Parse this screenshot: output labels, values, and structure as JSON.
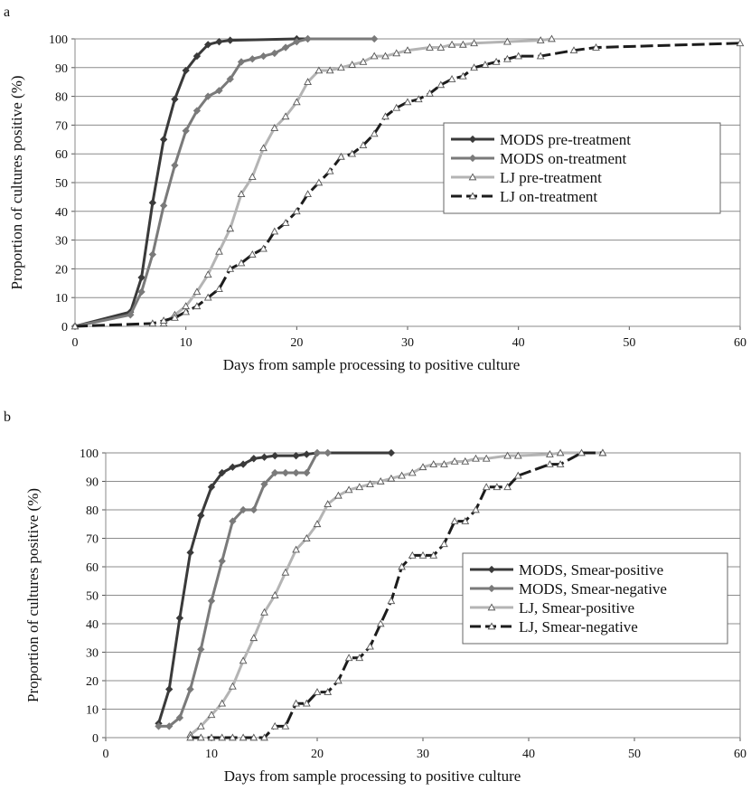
{
  "chart_data": [
    {
      "panel_label": "a",
      "type": "line",
      "xlabel": "Days from sample processing to positive culture",
      "ylabel": "Proportion of cultures positive (%)",
      "xlim": [
        0,
        60
      ],
      "ylim": [
        0,
        100
      ],
      "x_ticks": [
        0,
        10,
        20,
        30,
        40,
        50,
        60
      ],
      "y_ticks": [
        0,
        10,
        20,
        30,
        40,
        50,
        60,
        70,
        80,
        90,
        100
      ],
      "grid": "horizontal",
      "legend_position": "right-middle",
      "series": [
        {
          "name": "MODS pre-treatment",
          "color": "#3a3a3a",
          "marker": "diamond",
          "dash": "solid",
          "points": [
            [
              0,
              0
            ],
            [
              5,
              5
            ],
            [
              6,
              17
            ],
            [
              7,
              43
            ],
            [
              8,
              65
            ],
            [
              9,
              79
            ],
            [
              10,
              89
            ],
            [
              11,
              94
            ],
            [
              12,
              98
            ],
            [
              13,
              99
            ],
            [
              14,
              99.5
            ],
            [
              20,
              100
            ],
            [
              21,
              100
            ]
          ]
        },
        {
          "name": "MODS on-treatment",
          "color": "#7a7a7a",
          "marker": "diamond",
          "dash": "solid",
          "points": [
            [
              0,
              0
            ],
            [
              5,
              4
            ],
            [
              6,
              12
            ],
            [
              7,
              25
            ],
            [
              8,
              42
            ],
            [
              9,
              56
            ],
            [
              10,
              68
            ],
            [
              11,
              75
            ],
            [
              12,
              80
            ],
            [
              13,
              82
            ],
            [
              14,
              86
            ],
            [
              15,
              92
            ],
            [
              16,
              93
            ],
            [
              17,
              94
            ],
            [
              18,
              95
            ],
            [
              19,
              97
            ],
            [
              20,
              99
            ],
            [
              21,
              100
            ],
            [
              27,
              100
            ]
          ]
        },
        {
          "name": "LJ pre-treatment",
          "color": "#b4b4b4",
          "marker": "triangle",
          "dash": "solid",
          "points": [
            [
              8,
              1
            ],
            [
              9,
              4
            ],
            [
              10,
              7
            ],
            [
              11,
              12
            ],
            [
              12,
              18
            ],
            [
              13,
              26
            ],
            [
              14,
              34
            ],
            [
              15,
              46
            ],
            [
              16,
              52
            ],
            [
              17,
              62
            ],
            [
              18,
              69
            ],
            [
              19,
              73
            ],
            [
              20,
              78
            ],
            [
              21,
              85
            ],
            [
              22,
              89
            ],
            [
              23,
              89
            ],
            [
              24,
              90
            ],
            [
              25,
              91
            ],
            [
              26,
              92
            ],
            [
              27,
              94
            ],
            [
              28,
              94
            ],
            [
              29,
              95
            ],
            [
              30,
              96
            ],
            [
              32,
              97
            ],
            [
              33,
              97
            ],
            [
              34,
              98
            ],
            [
              35,
              98
            ],
            [
              36,
              98.5
            ],
            [
              39,
              99
            ],
            [
              42,
              99.5
            ],
            [
              43,
              100
            ]
          ]
        },
        {
          "name": "LJ on-treatment",
          "color": "#1c1c1c",
          "marker": "triangle",
          "dash": "dash",
          "points": [
            [
              0,
              0
            ],
            [
              7,
              1
            ],
            [
              8,
              2
            ],
            [
              9,
              3
            ],
            [
              10,
              5
            ],
            [
              11,
              7
            ],
            [
              12,
              10
            ],
            [
              13,
              13
            ],
            [
              14,
              20
            ],
            [
              15,
              22
            ],
            [
              16,
              25
            ],
            [
              17,
              27
            ],
            [
              18,
              33
            ],
            [
              19,
              36
            ],
            [
              20,
              40
            ],
            [
              21,
              46
            ],
            [
              22,
              50
            ],
            [
              23,
              54
            ],
            [
              24,
              59
            ],
            [
              25,
              60
            ],
            [
              26,
              63
            ],
            [
              27,
              67
            ],
            [
              28,
              73
            ],
            [
              29,
              76
            ],
            [
              30,
              78
            ],
            [
              31,
              79
            ],
            [
              32,
              81
            ],
            [
              33,
              84
            ],
            [
              34,
              86
            ],
            [
              35,
              87
            ],
            [
              36,
              90
            ],
            [
              37,
              91
            ],
            [
              38,
              92
            ],
            [
              39,
              93
            ],
            [
              40,
              94
            ],
            [
              42,
              94
            ],
            [
              45,
              96
            ],
            [
              47,
              97
            ],
            [
              60,
              98.5
            ]
          ]
        }
      ]
    },
    {
      "panel_label": "b",
      "type": "line",
      "xlabel": "Days from sample processing to positive culture",
      "ylabel": "Proportion of cultures positive (%)",
      "xlim": [
        0,
        60
      ],
      "ylim": [
        0,
        100
      ],
      "x_ticks": [
        0,
        10,
        20,
        30,
        40,
        50,
        60
      ],
      "y_ticks": [
        0,
        10,
        20,
        30,
        40,
        50,
        60,
        70,
        80,
        90,
        100
      ],
      "grid": "horizontal",
      "legend_position": "right-middle",
      "series": [
        {
          "name": "MODS, Smear-positive",
          "color": "#3a3a3a",
          "marker": "diamond",
          "dash": "solid",
          "points": [
            [
              5,
              5
            ],
            [
              6,
              17
            ],
            [
              7,
              42
            ],
            [
              8,
              65
            ],
            [
              9,
              78
            ],
            [
              10,
              88
            ],
            [
              11,
              93
            ],
            [
              12,
              95
            ],
            [
              13,
              96
            ],
            [
              14,
              98
            ],
            [
              15,
              98.5
            ],
            [
              16,
              99
            ],
            [
              18,
              99
            ],
            [
              19,
              99.5
            ],
            [
              20,
              100
            ],
            [
              21,
              100
            ],
            [
              27,
              100
            ]
          ]
        },
        {
          "name": "MODS, Smear-negative",
          "color": "#7a7a7a",
          "marker": "diamond",
          "dash": "solid",
          "points": [
            [
              5,
              4
            ],
            [
              6,
              4
            ],
            [
              7,
              7
            ],
            [
              8,
              17
            ],
            [
              9,
              31
            ],
            [
              10,
              48
            ],
            [
              11,
              62
            ],
            [
              12,
              76
            ],
            [
              13,
              80
            ],
            [
              14,
              80
            ],
            [
              15,
              89
            ],
            [
              16,
              93
            ],
            [
              17,
              93
            ],
            [
              18,
              93
            ],
            [
              19,
              93
            ],
            [
              20,
              100
            ],
            [
              21,
              100
            ]
          ]
        },
        {
          "name": "LJ, Smear-positive",
          "color": "#b4b4b4",
          "marker": "triangle",
          "dash": "solid",
          "points": [
            [
              8,
              1
            ],
            [
              9,
              4
            ],
            [
              10,
              8
            ],
            [
              11,
              12
            ],
            [
              12,
              18
            ],
            [
              13,
              27
            ],
            [
              14,
              35
            ],
            [
              15,
              44
            ],
            [
              16,
              50
            ],
            [
              17,
              58
            ],
            [
              18,
              66
            ],
            [
              19,
              70
            ],
            [
              20,
              75
            ],
            [
              21,
              82
            ],
            [
              22,
              85
            ],
            [
              23,
              87
            ],
            [
              24,
              88
            ],
            [
              25,
              89
            ],
            [
              26,
              90
            ],
            [
              27,
              91
            ],
            [
              28,
              92
            ],
            [
              29,
              93
            ],
            [
              30,
              95
            ],
            [
              31,
              96
            ],
            [
              32,
              96
            ],
            [
              33,
              97
            ],
            [
              34,
              97
            ],
            [
              35,
              98
            ],
            [
              36,
              98
            ],
            [
              38,
              99
            ],
            [
              39,
              99
            ],
            [
              42,
              99.5
            ],
            [
              43,
              100
            ],
            [
              47,
              100
            ]
          ]
        },
        {
          "name": "LJ, Smear-negative",
          "color": "#1c1c1c",
          "marker": "triangle",
          "dash": "dash",
          "points": [
            [
              8,
              0
            ],
            [
              9,
              0
            ],
            [
              10,
              0
            ],
            [
              11,
              0
            ],
            [
              12,
              0
            ],
            [
              13,
              0
            ],
            [
              14,
              0
            ],
            [
              15,
              0
            ],
            [
              16,
              4
            ],
            [
              17,
              4
            ],
            [
              18,
              12
            ],
            [
              19,
              12
            ],
            [
              20,
              16
            ],
            [
              21,
              16
            ],
            [
              22,
              20
            ],
            [
              23,
              28
            ],
            [
              24,
              28
            ],
            [
              25,
              32
            ],
            [
              26,
              40
            ],
            [
              27,
              48
            ],
            [
              28,
              60
            ],
            [
              29,
              64
            ],
            [
              30,
              64
            ],
            [
              31,
              64
            ],
            [
              32,
              68
            ],
            [
              33,
              76
            ],
            [
              34,
              76
            ],
            [
              35,
              80
            ],
            [
              36,
              88
            ],
            [
              37,
              88
            ],
            [
              38,
              88
            ],
            [
              39,
              92
            ],
            [
              42,
              96
            ],
            [
              43,
              96
            ],
            [
              45,
              100
            ],
            [
              47,
              100
            ]
          ]
        }
      ]
    }
  ]
}
